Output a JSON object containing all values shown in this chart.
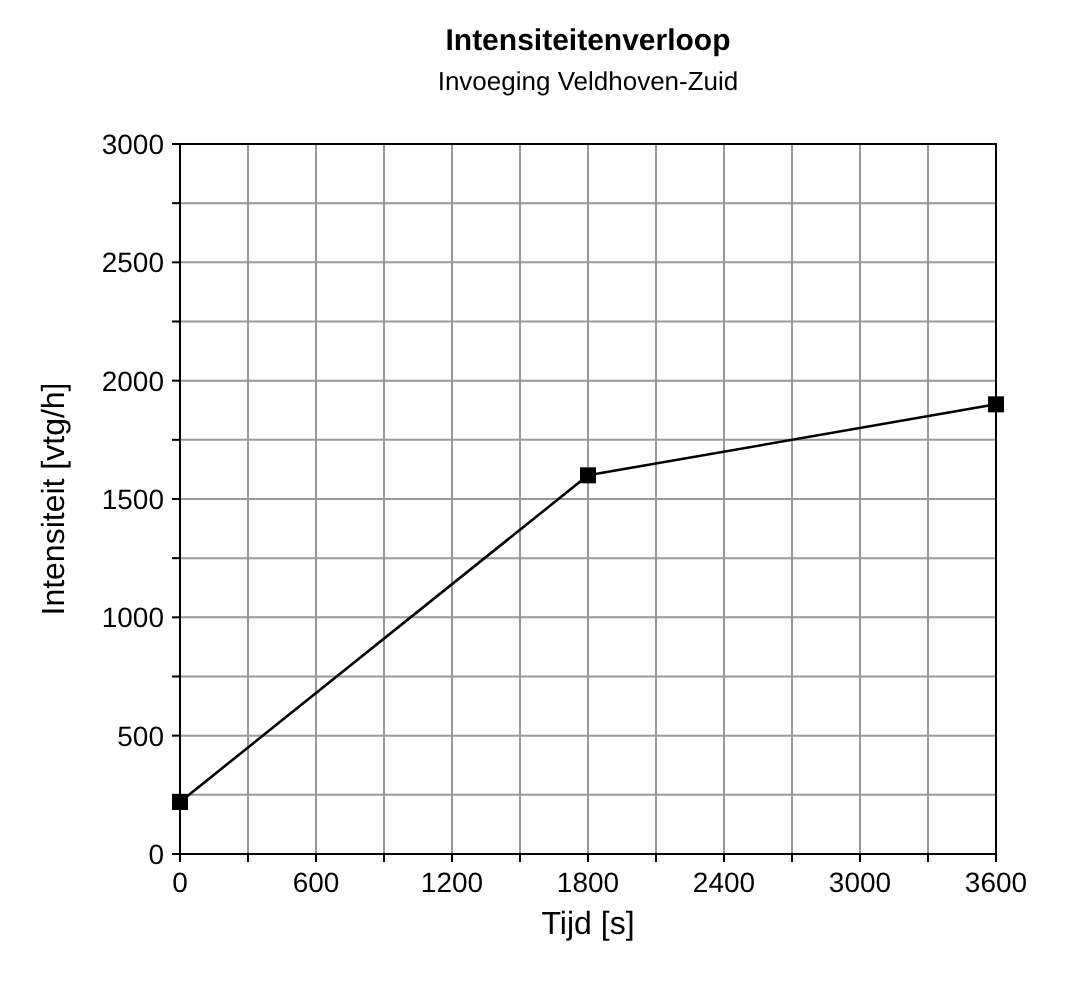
{
  "chart_data": {
    "type": "line",
    "title": "Intensiteitenverloop",
    "subtitle": "Invoeging Veldhoven-Zuid",
    "xlabel": "Tijd [s]",
    "ylabel": "Intensiteit [vtg/h]",
    "x": [
      0,
      1800,
      3600
    ],
    "series": [
      {
        "color": "#000000",
        "values": [
          220,
          1600,
          1900
        ]
      }
    ],
    "xlim": [
      0,
      3600
    ],
    "ylim": [
      0,
      3000
    ],
    "xticks": [
      0,
      {
        "value": 300,
        "label": null
      },
      600,
      {
        "value": 900,
        "label": null
      },
      1200,
      {
        "value": 1500,
        "label": null
      },
      1800,
      {
        "value": 2100,
        "label": null
      },
      2400,
      {
        "value": 2700,
        "label": null
      },
      3000,
      {
        "value": 3300,
        "label": null
      },
      3600
    ],
    "yticks": [
      0,
      {
        "value": 250,
        "label": null
      },
      500,
      {
        "value": 750,
        "label": null
      },
      1000,
      {
        "value": 1250,
        "label": null
      },
      1500,
      {
        "value": 1750,
        "label": null
      },
      2000,
      {
        "value": 2250,
        "label": null
      },
      2500,
      {
        "value": 2750,
        "label": null
      },
      3000
    ],
    "grid": true,
    "marker": "square",
    "line_style": "solid"
  }
}
